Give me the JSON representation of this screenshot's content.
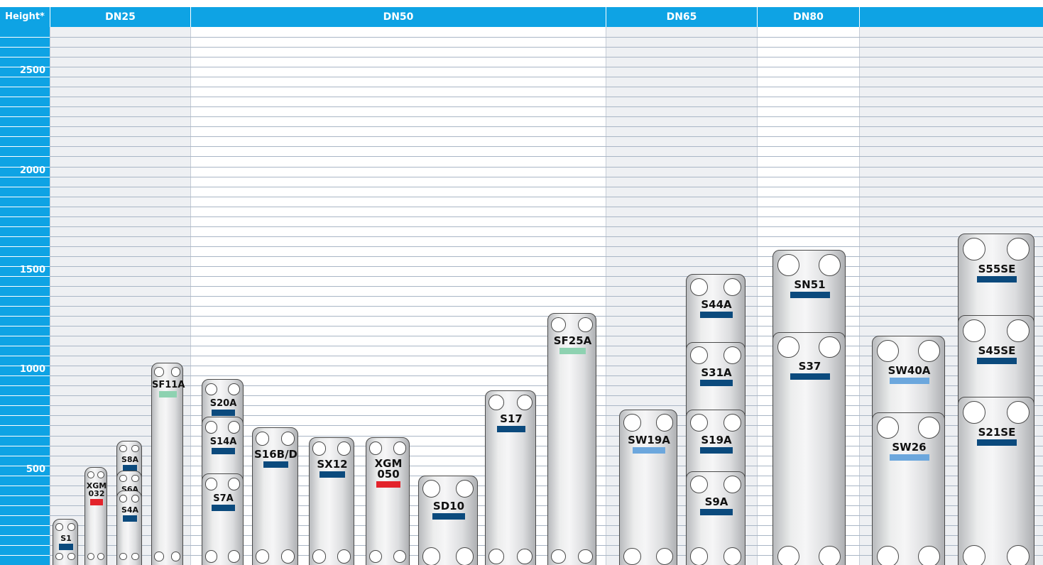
{
  "chart_data": {
    "type": "plate",
    "y_label": "Height*",
    "ylim": [
      50,
      2750
    ],
    "yticks": [
      500,
      1000,
      1500,
      2000,
      2500
    ],
    "yminorticks": [
      100,
      150,
      200,
      250,
      300,
      350,
      400,
      450,
      550,
      600,
      650,
      700,
      750,
      800,
      850,
      900,
      950,
      1050,
      1100,
      1150,
      1200,
      1250,
      1300,
      1350,
      1400,
      1450,
      1550,
      1600,
      1650,
      1700,
      1750,
      1800,
      1850,
      1900,
      1950,
      2050,
      2100,
      2150,
      2200,
      2250,
      2300,
      2350,
      2400,
      2450,
      2550,
      2600,
      2650,
      2700
    ],
    "grid": true,
    "groups": [
      "DN25",
      "DN50",
      "DN65",
      "DN80",
      null
    ],
    "plates": [
      {
        "name": "S1",
        "height": 280,
        "color": "#0b4a7d"
      },
      {
        "name": "XGM\n032",
        "height": 540,
        "color": "#e3232b"
      },
      {
        "name": "S8A",
        "height": 675,
        "color": "#0b4a7d"
      },
      {
        "name": "S6A",
        "height": 525,
        "color": "#0b4a7d"
      },
      {
        "name": "S4A",
        "height": 425,
        "color": "#0b4a7d"
      },
      {
        "name": "SF11A",
        "height": 1065,
        "color": "#8ed2b1"
      },
      {
        "name": "S20A",
        "height": 985,
        "color": "#0b4a7d"
      },
      {
        "name": "S14A",
        "height": 795,
        "color": "#0b4a7d"
      },
      {
        "name": "S7A",
        "height": 510,
        "color": "#0b4a7d"
      },
      {
        "name": "S16B/D",
        "height": 740,
        "color": "#0b4a7d"
      },
      {
        "name": "SX12",
        "height": 690,
        "color": "#0b4a7d"
      },
      {
        "name": "XGM\n050",
        "height": 690,
        "color": "#e3232b"
      },
      {
        "name": "SD10",
        "height": 500,
        "color": "#0b4a7d"
      },
      {
        "name": "S17",
        "height": 925,
        "color": "#0b4a7d"
      },
      {
        "name": "SF25A",
        "height": 1315,
        "color": "#8ed2b1"
      },
      {
        "name": "SW19A",
        "height": 830,
        "color": "#6ca7dd"
      },
      {
        "name": "S44A",
        "height": 1510,
        "color": "#0b4a7d"
      },
      {
        "name": "S31A",
        "height": 1170,
        "color": "#0b4a7d"
      },
      {
        "name": "S19A",
        "height": 830,
        "color": "#0b4a7d"
      },
      {
        "name": "S9A",
        "height": 520,
        "color": "#0b4a7d"
      },
      {
        "name": "SN51",
        "height": 1630,
        "color": "#0b4a7d"
      },
      {
        "name": "S37",
        "height": 1220,
        "color": "#0b4a7d"
      },
      {
        "name": "SW40A",
        "height": 1200,
        "color": "#6ca7dd"
      },
      {
        "name": "SW26",
        "height": 815,
        "color": "#6ca7dd"
      },
      {
        "name": "S55SE",
        "height": 1715,
        "color": "#0b4a7d"
      },
      {
        "name": "S45SE",
        "height": 1305,
        "color": "#0b4a7d"
      },
      {
        "name": "S21SE",
        "height": 895,
        "color": "#0b4a7d"
      }
    ]
  }
}
